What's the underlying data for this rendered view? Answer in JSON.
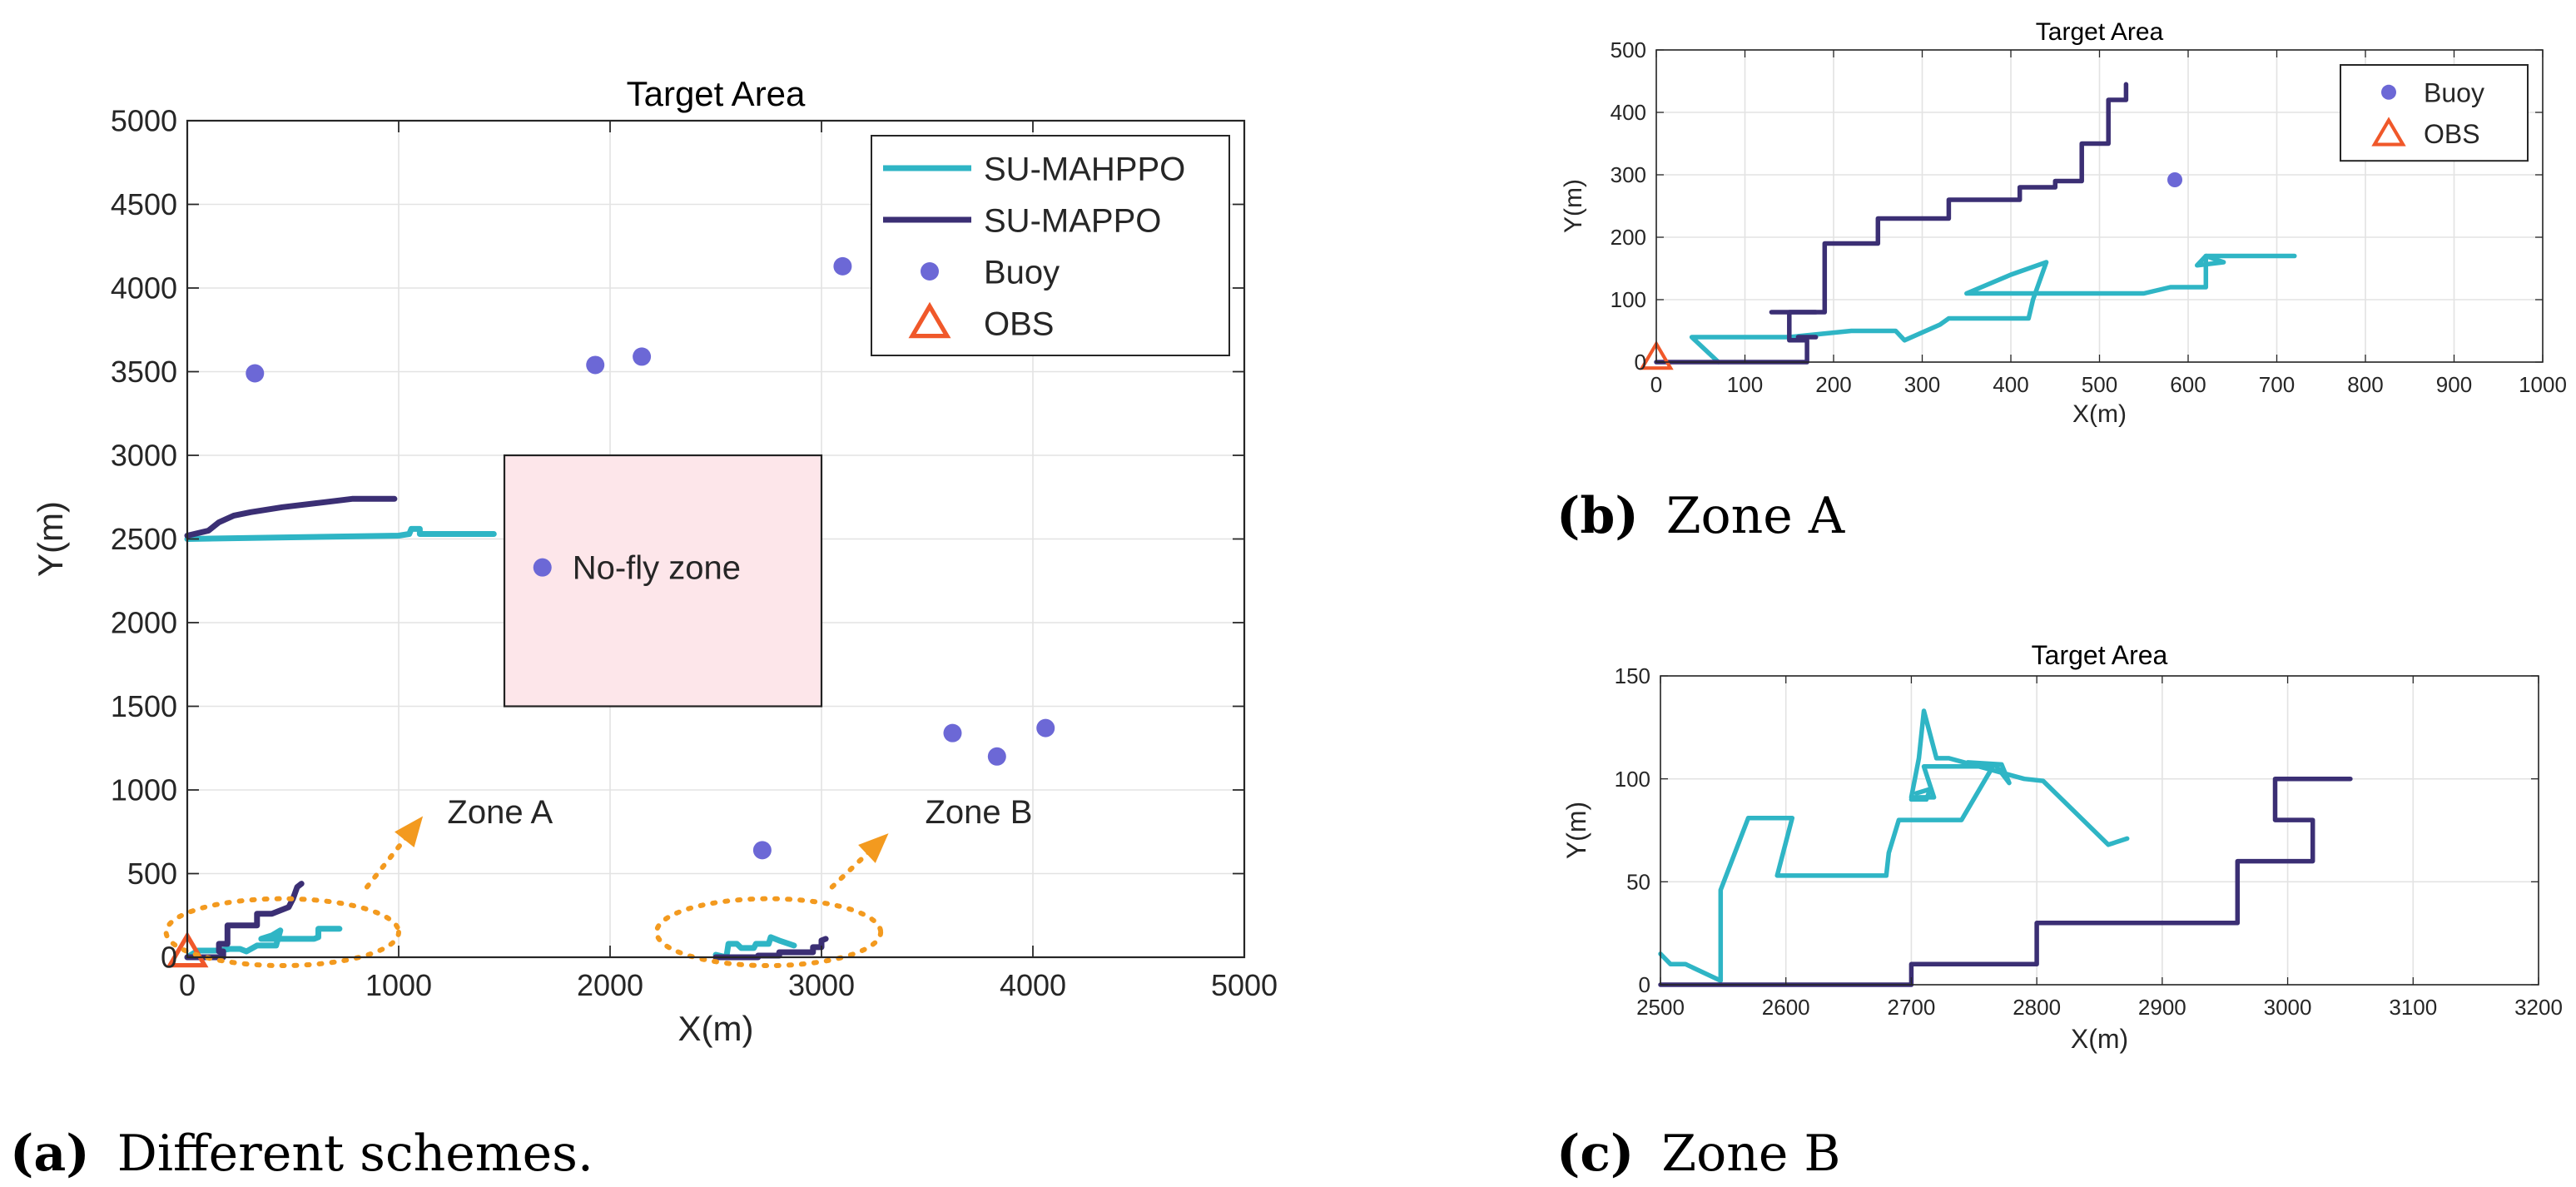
{
  "colors": {
    "mahppo": "#2fb5c5",
    "mappo": "#3b2f74",
    "buoy": "#6c68d6",
    "obs": "#f0582a",
    "zone_annot": "#f0682a",
    "ellipse": "#f39a1f",
    "nofly_fill": "#fde6ea",
    "grid": "#e3e3e3"
  },
  "captions": {
    "a_letter": "(a)",
    "a_text": "Different schemes.",
    "b_letter": "(b)",
    "b_text": "Zone A",
    "c_letter": "(c)",
    "c_text": "Zone B"
  },
  "chart_data": [
    {
      "id": "a",
      "type": "line",
      "title": "Target Area",
      "xlabel": "X(m)",
      "ylabel": "Y(m)",
      "xlim": [
        0,
        5000
      ],
      "ylim": [
        0,
        5000
      ],
      "xticks": [
        0,
        1000,
        2000,
        3000,
        4000,
        5000
      ],
      "yticks": [
        0,
        500,
        1000,
        1500,
        2000,
        2500,
        3000,
        3500,
        4000,
        4500,
        5000
      ],
      "xtick_labels": [
        "0",
        "1000",
        "2000",
        "3000",
        "4000",
        "5000"
      ],
      "ytick_labels": [
        "0",
        "500",
        "1000",
        "1500",
        "2000",
        "2500",
        "3000",
        "3500",
        "4000",
        "4500",
        "5000"
      ],
      "grid": true,
      "legend_position": "top-right",
      "legend": [
        {
          "label": "SU-MAHPPO",
          "kind": "line",
          "series": "mahppo"
        },
        {
          "label": "SU-MAPPO",
          "kind": "line",
          "series": "mappo"
        },
        {
          "label": "Buoy",
          "kind": "dot"
        },
        {
          "label": "OBS",
          "kind": "triangle"
        }
      ],
      "nofly_zone": {
        "x": [
          1500,
          3000
        ],
        "y": [
          1500,
          3000
        ],
        "label": "No-fly zone",
        "marker": [
          1680,
          2330
        ]
      },
      "buoys": [
        [
          320,
          3490
        ],
        [
          1930,
          3540
        ],
        [
          2150,
          3590
        ],
        [
          3100,
          4130
        ],
        [
          2720,
          640
        ],
        [
          3620,
          1340
        ],
        [
          3830,
          1200
        ],
        [
          4060,
          1370
        ]
      ],
      "obs": [
        [
          0,
          0
        ]
      ],
      "zone_annotations": [
        {
          "label": "Zone A",
          "ellipse_center": [
            450,
            150
          ],
          "ellipse_radius": [
            550,
            200
          ],
          "arrow_from": [
            850,
            420
          ],
          "arrow_to": [
            1100,
            820
          ],
          "text_pos": [
            1230,
            870
          ]
        },
        {
          "label": "Zone B",
          "ellipse_center": [
            2750,
            150
          ],
          "ellipse_radius": [
            530,
            200
          ],
          "arrow_from": [
            3050,
            420
          ],
          "arrow_to": [
            3300,
            720
          ],
          "text_pos": [
            3490,
            870
          ]
        }
      ],
      "series": [
        {
          "name": "SU-MAHPPO",
          "key": "mahppo",
          "segments": [
            [
              [
                0,
                2500
              ],
              [
                1000,
                2520
              ],
              [
                1050,
                2530
              ],
              [
                1060,
                2560
              ],
              [
                1100,
                2560
              ],
              [
                1100,
                2530
              ],
              [
                1450,
                2530
              ]
            ],
            [
              [
                0,
                0
              ],
              [
                50,
                40
              ],
              [
                150,
                40
              ],
              [
                200,
                50
              ],
              [
                250,
                50
              ],
              [
                280,
                35
              ],
              [
                330,
                70
              ],
              [
                420,
                70
              ],
              [
                440,
                160
              ],
              [
                400,
                130
              ],
              [
                350,
                110
              ],
              [
                600,
                110
              ],
              [
                620,
                120
              ],
              [
                620,
                170
              ],
              [
                720,
                170
              ]
            ],
            [
              [
                2500,
                15
              ],
              [
                2550,
                0
              ],
              [
                2560,
                80
              ],
              [
                2600,
                80
              ],
              [
                2620,
                55
              ],
              [
                2680,
                55
              ],
              [
                2690,
                80
              ],
              [
                2750,
                80
              ],
              [
                2760,
                120
              ],
              [
                2800,
                100
              ],
              [
                2870,
                70
              ]
            ]
          ]
        },
        {
          "name": "SU-MAPPO",
          "key": "mappo",
          "segments": [
            [
              [
                0,
                2520
              ],
              [
                100,
                2550
              ],
              [
                150,
                2600
              ],
              [
                220,
                2640
              ],
              [
                300,
                2660
              ],
              [
                450,
                2690
              ],
              [
                650,
                2720
              ],
              [
                780,
                2740
              ],
              [
                980,
                2740
              ]
            ],
            [
              [
                0,
                0
              ],
              [
                170,
                0
              ],
              [
                170,
                35
              ],
              [
                150,
                35
              ],
              [
                150,
                80
              ],
              [
                190,
                80
              ],
              [
                190,
                190
              ],
              [
                330,
                190
              ],
              [
                330,
                260
              ],
              [
                400,
                260
              ],
              [
                480,
                300
              ],
              [
                500,
                350
              ],
              [
                520,
                420
              ],
              [
                540,
                440
              ]
            ],
            [
              [
                2500,
                0
              ],
              [
                2700,
                0
              ],
              [
                2700,
                10
              ],
              [
                2800,
                10
              ],
              [
                2800,
                30
              ],
              [
                2960,
                30
              ],
              [
                2960,
                60
              ],
              [
                3000,
                60
              ],
              [
                3000,
                100
              ],
              [
                3020,
                110
              ]
            ]
          ]
        }
      ]
    },
    {
      "id": "b",
      "type": "line",
      "title": "Target Area",
      "xlabel": "X(m)",
      "ylabel": "Y(m)",
      "xlim": [
        0,
        1000
      ],
      "ylim": [
        0,
        500
      ],
      "xticks": [
        0,
        100,
        200,
        300,
        400,
        500,
        600,
        700,
        800,
        900,
        1000
      ],
      "yticks": [
        0,
        100,
        200,
        300,
        400,
        500
      ],
      "xtick_labels": [
        "0",
        "100",
        "200",
        "300",
        "400",
        "500",
        "600",
        "700",
        "800",
        "900",
        "1000"
      ],
      "ytick_labels": [
        "0",
        "100",
        "200",
        "300",
        "400",
        "500"
      ],
      "grid": true,
      "legend_position": "top-right",
      "legend": [
        {
          "label": "Buoy",
          "kind": "dot"
        },
        {
          "label": "OBS",
          "kind": "triangle"
        }
      ],
      "buoys": [
        [
          585,
          292
        ]
      ],
      "obs": [
        [
          0,
          0
        ]
      ],
      "series": [
        {
          "name": "SU-MAHPPO",
          "key": "mahppo",
          "segments": [
            [
              [
                70,
                0
              ],
              [
                40,
                40
              ],
              [
                150,
                40
              ],
              [
                220,
                50
              ],
              [
                270,
                50
              ],
              [
                280,
                35
              ],
              [
                320,
                60
              ],
              [
                330,
                70
              ],
              [
                420,
                70
              ],
              [
                425,
                100
              ],
              [
                440,
                160
              ],
              [
                400,
                140
              ],
              [
                350,
                110
              ],
              [
                550,
                110
              ],
              [
                580,
                120
              ],
              [
                620,
                120
              ],
              [
                620,
                170
              ],
              [
                720,
                170
              ]
            ],
            [
              [
                620,
                170
              ],
              [
                610,
                155
              ],
              [
                640,
                160
              ],
              [
                620,
                170
              ]
            ]
          ]
        },
        {
          "name": "SU-MAPPO",
          "key": "mappo",
          "segments": [
            [
              [
                0,
                0
              ],
              [
                170,
                0
              ],
              [
                170,
                35
              ],
              [
                150,
                35
              ],
              [
                150,
                80
              ],
              [
                190,
                80
              ],
              [
                190,
                190
              ],
              [
                250,
                190
              ],
              [
                250,
                230
              ],
              [
                330,
                230
              ],
              [
                330,
                260
              ],
              [
                410,
                260
              ],
              [
                410,
                280
              ],
              [
                450,
                280
              ],
              [
                450,
                290
              ],
              [
                480,
                290
              ],
              [
                480,
                350
              ],
              [
                510,
                350
              ],
              [
                510,
                420
              ],
              [
                530,
                420
              ],
              [
                530,
                445
              ]
            ],
            [
              [
                130,
                80
              ],
              [
                180,
                80
              ]
            ],
            [
              [
                160,
                40
              ],
              [
                180,
                40
              ]
            ]
          ]
        }
      ]
    },
    {
      "id": "c",
      "type": "line",
      "title": "Target Area",
      "xlabel": "X(m)",
      "ylabel": "Y(m)",
      "xlim": [
        2500,
        3200
      ],
      "ylim": [
        0,
        150
      ],
      "xticks": [
        2500,
        2600,
        2700,
        2800,
        2900,
        3000,
        3100,
        3200
      ],
      "yticks": [
        0,
        50,
        100,
        150
      ],
      "xtick_labels": [
        "2500",
        "2600",
        "2700",
        "2800",
        "2900",
        "3000",
        "3100",
        "3200"
      ],
      "ytick_labels": [
        "0",
        "50",
        "100",
        "150"
      ],
      "grid": true,
      "series": [
        {
          "name": "SU-MAHPPO",
          "key": "mahppo",
          "segments": [
            [
              [
                2500,
                15
              ],
              [
                2508,
                10
              ],
              [
                2520,
                10
              ],
              [
                2548,
                2
              ],
              [
                2548,
                46
              ],
              [
                2570,
                81
              ],
              [
                2605,
                81
              ],
              [
                2593,
                53
              ],
              [
                2680,
                53
              ],
              [
                2682,
                64
              ],
              [
                2690,
                80
              ],
              [
                2740,
                80
              ],
              [
                2765,
                106
              ],
              [
                2710,
                106
              ],
              [
                2718,
                91
              ],
              [
                2700,
                91
              ],
              [
                2706,
                110
              ],
              [
                2710,
                133
              ],
              [
                2720,
                110
              ],
              [
                2730,
                110
              ],
              [
                2790,
                100
              ],
              [
                2805,
                99
              ],
              [
                2857,
                68
              ],
              [
                2872,
                71
              ]
            ],
            [
              [
                2700,
                90
              ],
              [
                2712,
                90
              ],
              [
                2715,
                95
              ],
              [
                2704,
                93
              ]
            ],
            [
              [
                2745,
                108
              ],
              [
                2772,
                107
              ],
              [
                2778,
                98
              ],
              [
                2768,
                106
              ]
            ]
          ]
        },
        {
          "name": "SU-MAPPO",
          "key": "mappo",
          "segments": [
            [
              [
                2500,
                0
              ],
              [
                2700,
                0
              ],
              [
                2700,
                10
              ],
              [
                2800,
                10
              ],
              [
                2800,
                30
              ],
              [
                2960,
                30
              ],
              [
                2960,
                60
              ],
              [
                3020,
                60
              ],
              [
                3020,
                80
              ],
              [
                2990,
                80
              ],
              [
                2990,
                100
              ],
              [
                3050,
                100
              ]
            ]
          ]
        }
      ]
    }
  ]
}
